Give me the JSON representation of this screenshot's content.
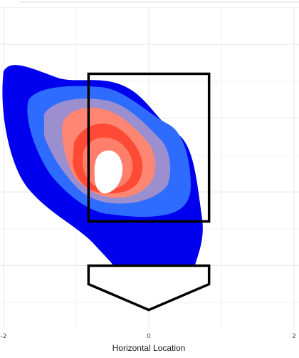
{
  "chart_data": {
    "type": "heatmap",
    "title": "",
    "xlabel": "Horizontal Location",
    "ylabel": "",
    "xlim": [
      -2,
      2
    ],
    "ylim": [
      0.3,
      4.6
    ],
    "x_ticks": [
      "-2",
      "0",
      "2"
    ],
    "grid": true,
    "legend": "none",
    "density_peak": {
      "x": -0.65,
      "y": 2.35
    },
    "density_levels": [
      {
        "level": 1,
        "color": "#0000ee"
      },
      {
        "level": 2,
        "color": "#2e6bff"
      },
      {
        "level": 3,
        "color": "#9b8fd0"
      },
      {
        "level": 4,
        "color": "#ff8672"
      },
      {
        "level": 5,
        "color": "#ff4a35"
      },
      {
        "level": 6,
        "color": "#ff7f6a"
      },
      {
        "level": 7,
        "color": "#ffffff"
      }
    ],
    "strike_zone": {
      "x": [
        -0.83,
        0.83
      ],
      "y": [
        1.6,
        3.6
      ]
    },
    "home_plate": {
      "x": [
        -0.83,
        0.83
      ],
      "y_top": 1.0,
      "y_side": 0.75,
      "y_point": 0.4
    },
    "zone_color": "#000000"
  }
}
